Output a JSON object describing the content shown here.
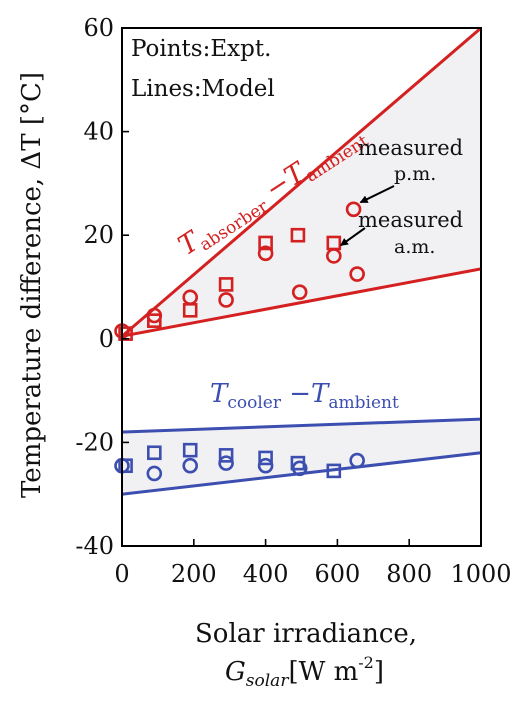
{
  "chart_data": {
    "type": "scatter",
    "xlabel": "Solar irradiance,",
    "xlabel_unit": {
      "symbol": "G",
      "subscript": "solar",
      "unit": "[W m",
      "exponent": "-2",
      "close": "]"
    },
    "ylabel": "Temperature difference, ΔT [°C]",
    "xlim": [
      0,
      1000
    ],
    "ylim": [
      -40,
      60
    ],
    "x_ticks": [
      "0",
      "200",
      "400",
      "600",
      "800",
      "1000"
    ],
    "y_ticks": [
      "60",
      "40",
      "20",
      "0",
      "-20",
      "-40"
    ],
    "grid": false,
    "legend_text": [
      "Points:Expt.",
      "Lines:Model"
    ],
    "colors": {
      "absorber": "#d42020",
      "cooler": "#3c4fb0",
      "band": "#f1f1f3"
    },
    "series": [
      {
        "group": "absorber",
        "label_main": "T",
        "label_sub1": "absorber",
        "label_mid": " −T",
        "label_sub2": "ambient",
        "model_upper": [
          [
            0,
            0.5
          ],
          [
            1000,
            60
          ]
        ],
        "model_lower": [
          [
            0,
            0.5
          ],
          [
            1000,
            13.5
          ]
        ],
        "expt_am_squares": [
          [
            10,
            1
          ],
          [
            90,
            3.5
          ],
          [
            190,
            5.5
          ],
          [
            290,
            10.5
          ],
          [
            400,
            18.5
          ],
          [
            490,
            20
          ],
          [
            590,
            18.5
          ]
        ],
        "expt_pm_circles": [
          [
            0,
            1.5
          ],
          [
            90,
            4.5
          ],
          [
            190,
            8
          ],
          [
            290,
            7.5
          ],
          [
            400,
            16.5
          ],
          [
            495,
            9
          ],
          [
            590,
            16
          ],
          [
            645,
            25
          ],
          [
            655,
            12.5
          ]
        ]
      },
      {
        "group": "cooler",
        "label_main": "T",
        "label_sub1": "cooler",
        "label_mid": " −T",
        "label_sub2": "ambient",
        "model_upper": [
          [
            0,
            -18
          ],
          [
            1000,
            -15.5
          ]
        ],
        "model_lower": [
          [
            0,
            -30
          ],
          [
            1000,
            -22
          ]
        ],
        "expt_am_squares": [
          [
            10,
            -24.5
          ],
          [
            90,
            -22
          ],
          [
            190,
            -21.5
          ],
          [
            290,
            -22.5
          ],
          [
            400,
            -23
          ],
          [
            490,
            -24
          ],
          [
            590,
            -25.5
          ]
        ],
        "expt_pm_circles": [
          [
            0,
            -24.5
          ],
          [
            90,
            -26
          ],
          [
            190,
            -24.5
          ],
          [
            290,
            -24
          ],
          [
            400,
            -24.5
          ],
          [
            495,
            -25
          ],
          [
            655,
            -23.5
          ]
        ]
      }
    ],
    "annotations": [
      {
        "lines": [
          "measured",
          "p.m."
        ],
        "target": [
          645,
          25
        ]
      },
      {
        "lines": [
          "measured",
          "a.m."
        ],
        "target": [
          590,
          16.5
        ]
      }
    ]
  }
}
